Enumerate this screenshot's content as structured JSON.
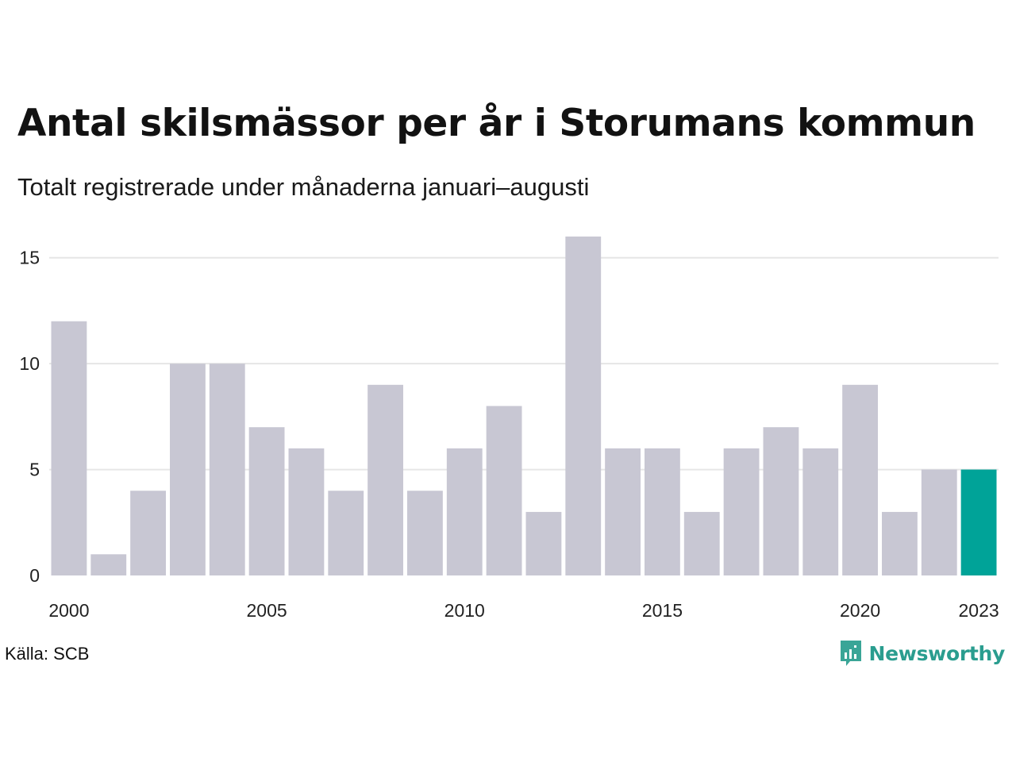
{
  "title": "Antal skilsmässor per år i Storumans kommun",
  "subtitle": "Totalt registrerade under månaderna januari–augusti",
  "source": "Källa: SCB",
  "brand": "Newsworthy",
  "colors": {
    "bar": "#c8c7d3",
    "highlight": "#00a398",
    "grid": "#e6e6e6",
    "brand": "#2a9d8f"
  },
  "chart_data": {
    "type": "bar",
    "categories": [
      "2000",
      "2001",
      "2002",
      "2003",
      "2004",
      "2005",
      "2006",
      "2007",
      "2008",
      "2009",
      "2010",
      "2011",
      "2012",
      "2013",
      "2014",
      "2015",
      "2016",
      "2017",
      "2018",
      "2019",
      "2020",
      "2021",
      "2022",
      "2023"
    ],
    "values": [
      12,
      1,
      4,
      10,
      10,
      7,
      6,
      4,
      9,
      4,
      6,
      8,
      3,
      16,
      6,
      6,
      3,
      6,
      7,
      6,
      9,
      3,
      5,
      5
    ],
    "highlight_category": "2023",
    "x_tick_labels": [
      "2000",
      "2005",
      "2010",
      "2015",
      "2020",
      "2023"
    ],
    "y_ticks": [
      0,
      5,
      10,
      15
    ],
    "ylim": [
      0,
      16
    ],
    "grid": true,
    "legend": false
  }
}
